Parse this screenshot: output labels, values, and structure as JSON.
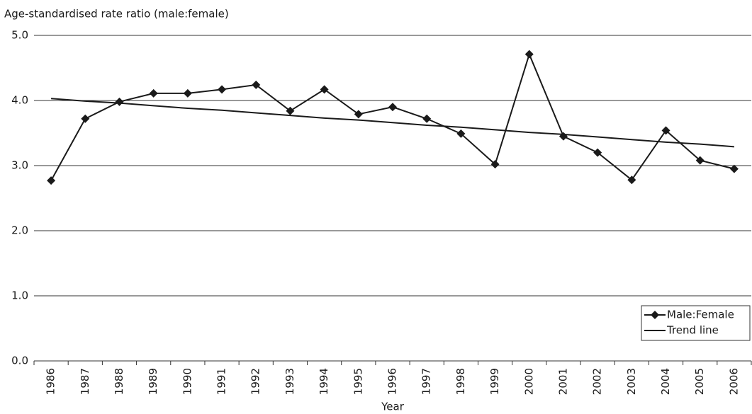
{
  "chart_data": {
    "type": "line",
    "y_label": "Age-standardised rate ratio (male:female)",
    "x_label": "Year",
    "categories": [
      "1986",
      "1987",
      "1988",
      "1989",
      "1990",
      "1991",
      "1992",
      "1993",
      "1994",
      "1995",
      "1996",
      "1997",
      "1998",
      "1999",
      "2000",
      "2001",
      "2002",
      "2003",
      "2004",
      "2005",
      "2006"
    ],
    "series": [
      {
        "name": "Male:Female",
        "color": "#1a1a1a",
        "marker": "diamond",
        "values": [
          2.77,
          3.72,
          3.98,
          4.11,
          4.11,
          4.17,
          4.24,
          3.84,
          4.17,
          3.79,
          3.9,
          3.72,
          3.49,
          3.02,
          4.71,
          3.45,
          3.2,
          2.78,
          3.54,
          3.08,
          2.95
        ]
      },
      {
        "name": "Trend line",
        "color": "#1a1a1a",
        "values": [
          4.03,
          3.99,
          3.96,
          3.92,
          3.88,
          3.85,
          3.81,
          3.77,
          3.73,
          3.7,
          3.66,
          3.62,
          3.59,
          3.55,
          3.51,
          3.48,
          3.44,
          3.4,
          3.36,
          3.33,
          3.29
        ]
      }
    ],
    "ylim": [
      0,
      5
    ],
    "yticks": [
      {
        "value": 0,
        "label": "0.0"
      },
      {
        "value": 1,
        "label": "1.0"
      },
      {
        "value": 2,
        "label": "2.0"
      },
      {
        "value": 3,
        "label": "3.0"
      },
      {
        "value": 4,
        "label": "4.0"
      },
      {
        "value": 5,
        "label": "5.0"
      }
    ],
    "grid": true,
    "legend": "lower-right"
  }
}
